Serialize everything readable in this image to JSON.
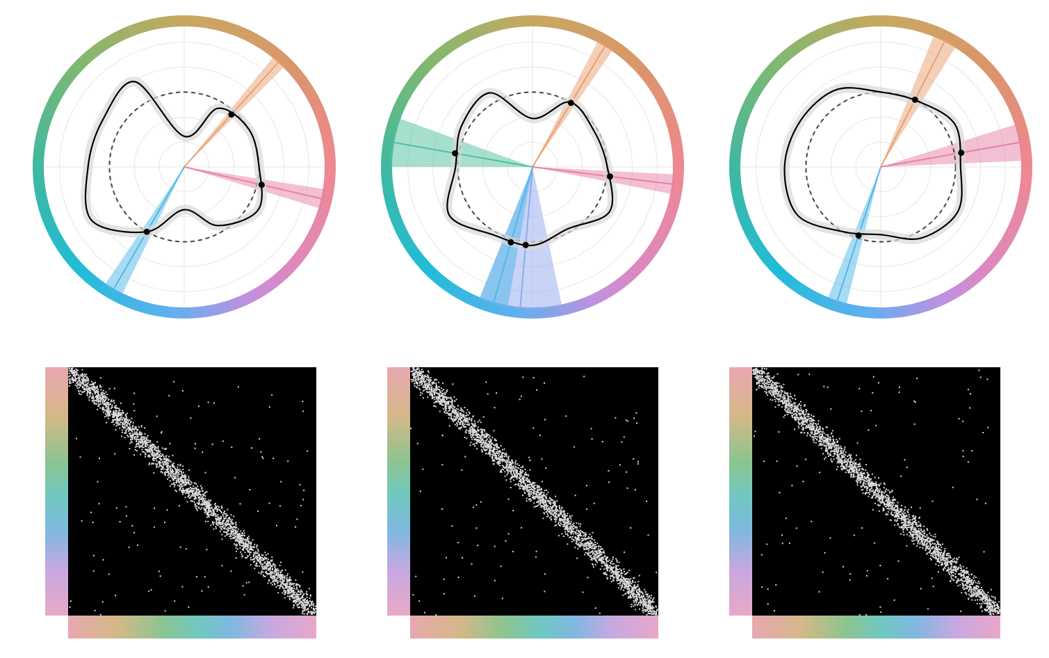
{
  "chart_data": [
    {
      "type": "polar",
      "rlim": [
        0,
        200
      ],
      "rticks": [
        35,
        70,
        105,
        140,
        175
      ],
      "reference": 105,
      "theta": [
        0,
        30,
        60,
        90,
        120,
        150,
        180,
        210,
        240,
        270,
        300,
        330
      ],
      "values": [
        43,
        95,
        105,
        105,
        120,
        95,
        60,
        105,
        150,
        135,
        132,
        138
      ],
      "wedges": [
        {
          "angle": 42,
          "width": 6,
          "color": "#e8a070"
        },
        {
          "angle": 103,
          "width": 8,
          "color": "#e880a8"
        },
        {
          "angle": 210,
          "width": 8,
          "color": "#50b8e8"
        }
      ]
    },
    {
      "type": "polar",
      "rlim": [
        0,
        200
      ],
      "rticks": [
        35,
        70,
        105,
        140,
        175
      ],
      "reference": 105,
      "theta": [
        0,
        30,
        60,
        90,
        120,
        150,
        180,
        210,
        240,
        270,
        300,
        330
      ],
      "values": [
        68,
        105,
        100,
        105,
        125,
        100,
        110,
        110,
        135,
        108,
        115,
        120
      ],
      "wedges": [
        {
          "angle": 185,
          "width": 34,
          "color": "#90a8f0"
        },
        {
          "angle": 31,
          "width": 7,
          "color": "#e8a070"
        },
        {
          "angle": 280,
          "width": 20,
          "color": "#50c0a0"
        },
        {
          "angle": 97,
          "width": 8,
          "color": "#e880a8"
        },
        {
          "angle": 196,
          "width": 12,
          "color": "#50b8e8"
        }
      ]
    },
    {
      "type": "polar",
      "rlim": [
        0,
        200
      ],
      "rticks": [
        35,
        70,
        105,
        140,
        175
      ],
      "reference": 105,
      "theta": [
        0,
        30,
        60,
        90,
        120,
        150,
        180,
        210,
        240,
        270,
        300,
        330
      ],
      "values": [
        105,
        106,
        120,
        112,
        125,
        115,
        95,
        105,
        135,
        135,
        130,
        125
      ],
      "wedges": [
        {
          "angle": 27,
          "width": 10,
          "color": "#e8a070"
        },
        {
          "angle": 80,
          "width": 15,
          "color": "#e880a8"
        },
        {
          "angle": 198,
          "width": 8,
          "color": "#50b8e8"
        }
      ]
    }
  ]
}
